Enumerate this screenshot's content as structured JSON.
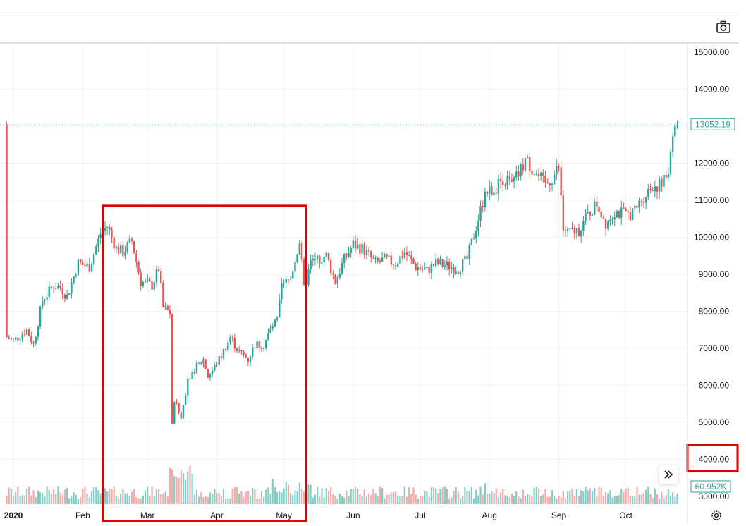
{
  "toolbar": {
    "camera_icon": "camera-icon"
  },
  "controls": {
    "scroll_icon": "double-chevron-right-icon",
    "settings_icon": "gear-icon"
  },
  "colors": {
    "up": "#26a69a",
    "down": "#ef5350",
    "up_volume": "#7fcfc6",
    "down_volume": "#f6a9a6",
    "highlight": "#e00000",
    "grid": "#f0f3fa"
  },
  "chart_data": {
    "type": "candlestick",
    "instrument_last_price": "13052.19",
    "volume_last": "60.952K",
    "ylim": [
      3000,
      15000
    ],
    "y_ticks": [
      "15000.00",
      "14000.00",
      "13000.00",
      "12000.00",
      "11000.00",
      "10000.00",
      "9000.00",
      "8000.00",
      "7000.00",
      "6000.00",
      "5000.00",
      "4000.00",
      "3000.00"
    ],
    "x_ticks": [
      {
        "label": "2020",
        "date": "2020-01-01"
      },
      {
        "label": "Feb",
        "date": "2020-02-01"
      },
      {
        "label": "Mar",
        "date": "2020-03-01"
      },
      {
        "label": "Apr",
        "date": "2020-04-01"
      },
      {
        "label": "May",
        "date": "2020-05-01"
      },
      {
        "label": "Jun",
        "date": "2020-06-01"
      },
      {
        "label": "Jul",
        "date": "2020-07-01"
      },
      {
        "label": "Aug",
        "date": "2020-08-01"
      },
      {
        "label": "Sep",
        "date": "2020-09-01"
      },
      {
        "label": "Oct",
        "date": "2020-10-01"
      }
    ],
    "close_anchors": [
      [
        "2019-12-29",
        7300
      ],
      [
        "2020-01-01",
        7200
      ],
      [
        "2020-01-07",
        7500
      ],
      [
        "2020-01-10",
        7100
      ],
      [
        "2020-01-14",
        8300
      ],
      [
        "2020-01-19",
        8700
      ],
      [
        "2020-01-22",
        8650
      ],
      [
        "2020-01-25",
        8400
      ],
      [
        "2020-01-30",
        9300
      ],
      [
        "2020-02-04",
        9200
      ],
      [
        "2020-02-09",
        10100
      ],
      [
        "2020-02-12",
        10300
      ],
      [
        "2020-02-16",
        9700
      ],
      [
        "2020-02-19",
        9600
      ],
      [
        "2020-02-23",
        9900
      ],
      [
        "2020-02-27",
        8800
      ],
      [
        "2020-03-03",
        8700
      ],
      [
        "2020-03-06",
        9150
      ],
      [
        "2020-03-08",
        8100
      ],
      [
        "2020-03-11",
        7950
      ],
      [
        "2020-03-12",
        4900
      ],
      [
        "2020-03-13",
        5600
      ],
      [
        "2020-03-16",
        5100
      ],
      [
        "2020-03-19",
        6200
      ],
      [
        "2020-03-23",
        6500
      ],
      [
        "2020-03-26",
        6700
      ],
      [
        "2020-03-28",
        6250
      ],
      [
        "2020-03-30",
        6400
      ],
      [
        "2020-04-03",
        6800
      ],
      [
        "2020-04-07",
        7300
      ],
      [
        "2020-04-11",
        6900
      ],
      [
        "2020-04-15",
        6700
      ],
      [
        "2020-04-18",
        7100
      ],
      [
        "2020-04-22",
        7100
      ],
      [
        "2020-04-25",
        7500
      ],
      [
        "2020-04-28",
        7750
      ],
      [
        "2020-04-30",
        8650
      ],
      [
        "2020-05-04",
        8900
      ],
      [
        "2020-05-08",
        9900
      ],
      [
        "2020-05-10",
        8600
      ],
      [
        "2020-05-13",
        9300
      ],
      [
        "2020-05-16",
        9400
      ],
      [
        "2020-05-20",
        9500
      ],
      [
        "2020-05-24",
        8800
      ],
      [
        "2020-05-28",
        9400
      ],
      [
        "2020-06-01",
        9800
      ],
      [
        "2020-06-05",
        9700
      ],
      [
        "2020-06-11",
        9300
      ],
      [
        "2020-06-15",
        9400
      ],
      [
        "2020-06-20",
        9300
      ],
      [
        "2020-06-24",
        9600
      ],
      [
        "2020-06-29",
        9200
      ],
      [
        "2020-07-04",
        9100
      ],
      [
        "2020-07-08",
        9300
      ],
      [
        "2020-07-12",
        9250
      ],
      [
        "2020-07-18",
        9150
      ],
      [
        "2020-07-22",
        9400
      ],
      [
        "2020-07-27",
        10500
      ],
      [
        "2020-07-30",
        11200
      ],
      [
        "2020-08-03",
        11300
      ],
      [
        "2020-08-07",
        11600
      ],
      [
        "2020-08-11",
        11400
      ],
      [
        "2020-08-15",
        11800
      ],
      [
        "2020-08-17",
        12100
      ],
      [
        "2020-08-22",
        11700
      ],
      [
        "2020-08-26",
        11400
      ],
      [
        "2020-08-29",
        11600
      ],
      [
        "2020-09-01",
        11900
      ],
      [
        "2020-09-03",
        10200
      ],
      [
        "2020-09-06",
        10100
      ],
      [
        "2020-09-10",
        10200
      ],
      [
        "2020-09-14",
        10600
      ],
      [
        "2020-09-18",
        10900
      ],
      [
        "2020-09-22",
        10400
      ],
      [
        "2020-09-26",
        10700
      ],
      [
        "2020-10-01",
        10600
      ],
      [
        "2020-10-05",
        10700
      ],
      [
        "2020-10-09",
        11100
      ],
      [
        "2020-10-13",
        11400
      ],
      [
        "2020-10-17",
        11400
      ],
      [
        "2020-10-20",
        11800
      ],
      [
        "2020-10-22",
        12900
      ],
      [
        "2020-10-24",
        13052
      ]
    ],
    "highlight_regions": [
      {
        "from": "2020-02-10",
        "to": "2020-05-11",
        "y_from": 10850,
        "y_to": "bottom"
      },
      {
        "label": "4000.00",
        "axis": "y"
      }
    ]
  }
}
